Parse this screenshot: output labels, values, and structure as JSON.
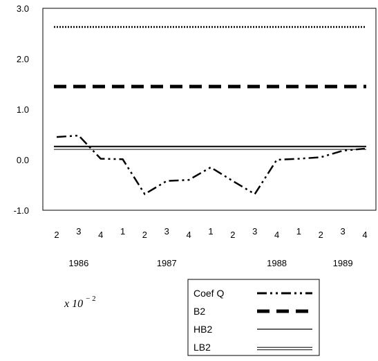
{
  "chart_data": {
    "type": "line",
    "ylim": [
      -1.0,
      3.0
    ],
    "yticks": [
      "3.0",
      "2.0",
      "1.0",
      "0.0",
      "-1.0"
    ],
    "ytick_values": [
      3.0,
      2.0,
      1.0,
      0.0,
      -1.0
    ],
    "quarters": [
      "2",
      "3",
      "4",
      "1",
      "2",
      "3",
      "4",
      "1",
      "2",
      "3",
      "4",
      "1",
      "2",
      "3",
      "4"
    ],
    "years": [
      {
        "label": "1986",
        "center_index": 1
      },
      {
        "label": "1987",
        "center_index": 5
      },
      {
        "label": "1988",
        "center_index": 10
      },
      {
        "label": "1989",
        "center_index": 13
      }
    ],
    "series": [
      {
        "name": "Coef Q",
        "style": "dashdotdot",
        "x": [
          0,
          1,
          2,
          3,
          4,
          5,
          6,
          7,
          8,
          9,
          10,
          11,
          12,
          13,
          14
        ],
        "values": [
          0.45,
          0.48,
          0.02,
          0.01,
          -0.68,
          -0.42,
          -0.4,
          -0.15,
          -0.42,
          -0.68,
          0.0,
          0.02,
          0.05,
          0.18,
          0.22
        ]
      },
      {
        "name": "B2",
        "style": "dashed-thick",
        "x": [
          0,
          14
        ],
        "values": [
          1.45,
          1.45
        ]
      },
      {
        "name": "HB2",
        "style": "solid",
        "x": [
          0,
          14
        ],
        "values": [
          0.27,
          0.27
        ]
      },
      {
        "name": "LB2",
        "style": "double",
        "x": [
          0,
          14
        ],
        "values": [
          0.23,
          0.23
        ]
      },
      {
        "name": "",
        "style": "dotted",
        "x": [
          0,
          14
        ],
        "values": [
          2.63,
          2.63
        ]
      }
    ],
    "note": {
      "base": "x 10",
      "exponent": "− 2"
    },
    "grid": false,
    "legend_position": "bottom-center"
  }
}
